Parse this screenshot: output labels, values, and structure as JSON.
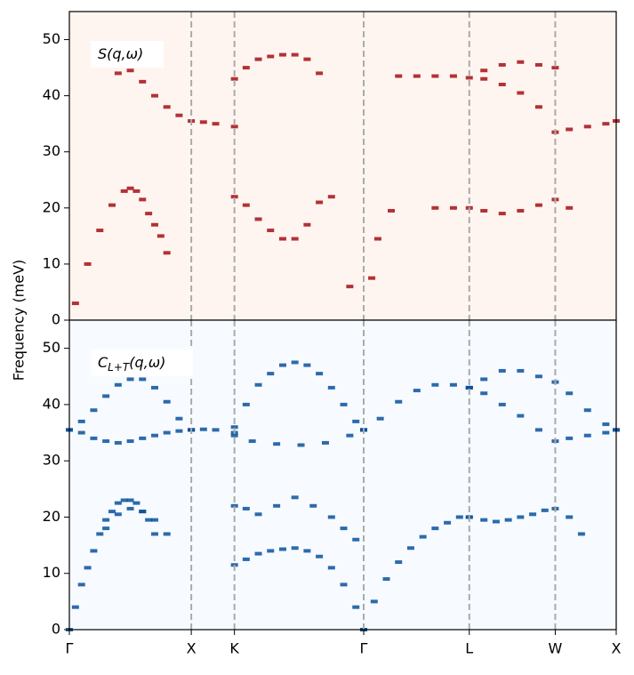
{
  "chart_data": [
    {
      "type": "heatmap-branches",
      "ylabel": "Frequency (meV)",
      "annotation": {
        "main": "S",
        "rest": "(q,ω)"
      },
      "background": "#fff5f0",
      "xlim": [
        0,
        4.485
      ],
      "ylim": [
        0,
        55
      ],
      "yticks": [
        0,
        10,
        20,
        30,
        40,
        50
      ],
      "xticks": [
        0,
        1,
        1.354,
        2.414,
        3.28,
        3.985,
        4.485
      ],
      "series": [
        {
          "color": "#a50f15",
          "x": [
            0.4,
            0.5,
            0.6,
            0.7,
            0.8,
            0.9,
            1.0,
            1.1,
            1.2,
            1.354
          ],
          "values": [
            44,
            44.5,
            42.5,
            40,
            38,
            36.5,
            35.5,
            35.3,
            35,
            34.5
          ]
        },
        {
          "color": "#a50f15",
          "x": [
            1.354,
            1.45,
            1.55,
            1.65,
            1.75,
            1.85,
            1.95,
            2.05
          ],
          "values": [
            43,
            45,
            46.5,
            47,
            47.3,
            47.3,
            46.5,
            44
          ]
        },
        {
          "color": "#a50f15",
          "x": [
            2.7,
            2.85,
            3.0,
            3.15,
            3.28,
            3.4,
            3.55,
            3.7,
            3.85,
            3.985,
            4.1,
            4.25,
            4.4,
            4.485
          ],
          "values": [
            43.5,
            43.5,
            43.5,
            43.5,
            43.2,
            43,
            42,
            40.5,
            38,
            33.5,
            34,
            34.5,
            35,
            35.5
          ]
        },
        {
          "color": "#a50f15",
          "x": [
            3.4,
            3.55,
            3.7,
            3.85,
            3.985
          ],
          "values": [
            44.5,
            45.5,
            46,
            45.5,
            45
          ]
        },
        {
          "color": "#a50f15",
          "x": [
            0.05,
            0.15,
            0.25,
            0.35,
            0.45,
            0.5,
            0.55,
            0.6,
            0.65,
            0.7,
            0.75,
            0.8
          ],
          "values": [
            3,
            10,
            16,
            20.5,
            23,
            23.5,
            23,
            21.5,
            19,
            17,
            15,
            12
          ]
        },
        {
          "color": "#a50f15",
          "x": [
            1.354,
            1.45,
            1.55,
            1.65,
            1.75,
            1.85,
            1.95,
            2.05,
            2.15
          ],
          "values": [
            22,
            20.5,
            18,
            16,
            14.5,
            14.5,
            17,
            21,
            22
          ]
        },
        {
          "color": "#a50f15",
          "x": [
            2.3,
            2.48,
            2.53,
            2.64,
            3.0,
            3.15,
            3.28,
            3.4,
            3.55,
            3.7,
            3.85,
            3.985,
            4.1
          ],
          "values": [
            6,
            7.5,
            14.5,
            19.5,
            20,
            20,
            20,
            19.5,
            19,
            19.5,
            20.5,
            21.5,
            20
          ]
        }
      ]
    },
    {
      "type": "heatmap-branches",
      "annotation": {
        "main": "C",
        "sub": "L+T",
        "rest": "(q,ω)"
      },
      "background": "#f7fbff",
      "xlim": [
        0,
        4.485
      ],
      "ylim": [
        0,
        55
      ],
      "yticks": [
        0,
        10,
        20,
        30,
        40,
        50
      ],
      "xticks": [
        {
          "value": 0,
          "label": "Γ"
        },
        {
          "value": 1,
          "label": "X"
        },
        {
          "value": 1.354,
          "label": "K"
        },
        {
          "value": 2.414,
          "label": "Γ"
        },
        {
          "value": 3.28,
          "label": "L"
        },
        {
          "value": 3.985,
          "label": "W"
        },
        {
          "value": 4.485,
          "label": "X"
        }
      ],
      "series": [
        {
          "color": "#08519c",
          "x": [
            0,
            0.1,
            0.2,
            0.3,
            0.4,
            0.5,
            0.6,
            0.7,
            0.8,
            0.9,
            1.0
          ],
          "values": [
            35.5,
            37,
            39,
            41.5,
            43.5,
            44.5,
            44.5,
            43,
            40.5,
            37.5,
            35.5
          ]
        },
        {
          "color": "#08519c",
          "x": [
            0,
            0.1,
            0.2,
            0.3,
            0.4,
            0.5,
            0.6,
            0.7,
            0.8,
            0.9,
            1.0
          ],
          "values": [
            35.5,
            35,
            34,
            33.5,
            33.2,
            33.5,
            34,
            34.5,
            35,
            35.3,
            35.5
          ]
        },
        {
          "color": "#08519c",
          "x": [
            1.0,
            1.1,
            1.2,
            1.354
          ],
          "values": [
            35.5,
            35.6,
            35.5,
            35
          ]
        },
        {
          "color": "#08519c",
          "x": [
            1.354,
            1.45,
            1.55,
            1.65,
            1.75,
            1.85,
            1.95,
            2.05,
            2.15,
            2.25,
            2.35,
            2.414
          ],
          "values": [
            36,
            40,
            43.5,
            45.5,
            47,
            47.5,
            47,
            45.5,
            43,
            40,
            37,
            35.5
          ]
        },
        {
          "color": "#08519c",
          "x": [
            1.354,
            1.5,
            1.7,
            1.9,
            2.1,
            2.3,
            2.414
          ],
          "values": [
            34.5,
            33.5,
            33,
            32.8,
            33.2,
            34.5,
            35.5
          ]
        },
        {
          "color": "#08519c",
          "x": [
            2.414,
            2.55,
            2.7,
            2.85,
            3.0,
            3.15,
            3.28
          ],
          "values": [
            35.5,
            37.5,
            40.5,
            42.5,
            43.5,
            43.5,
            43
          ]
        },
        {
          "color": "#08519c",
          "x": [
            3.28,
            3.4,
            3.55,
            3.7,
            3.85,
            3.985,
            4.1,
            4.25,
            4.4,
            4.485
          ],
          "values": [
            43,
            44.5,
            46,
            46,
            45,
            44,
            42,
            39,
            36.5,
            35.5
          ]
        },
        {
          "color": "#08519c",
          "x": [
            3.28,
            3.4,
            3.55,
            3.7,
            3.85,
            3.985,
            4.1,
            4.25,
            4.4,
            4.485
          ],
          "values": [
            43,
            42,
            40,
            38,
            35.5,
            33.5,
            34,
            34.5,
            35,
            35.5
          ]
        },
        {
          "color": "#08519c",
          "x": [
            0,
            0.05,
            0.1,
            0.15,
            0.2,
            0.25,
            0.3,
            0.35,
            0.4,
            0.45,
            0.5,
            0.55,
            0.6,
            0.65,
            0.7
          ],
          "values": [
            0,
            4,
            8,
            11,
            14,
            17,
            19.5,
            21,
            22.5,
            23,
            23,
            22.5,
            21,
            19.5,
            17
          ]
        },
        {
          "color": "#08519c",
          "x": [
            0.3,
            0.4,
            0.5,
            0.6,
            0.7,
            0.8
          ],
          "values": [
            18,
            20.5,
            21.5,
            21,
            19.5,
            17
          ]
        },
        {
          "color": "#08519c",
          "x": [
            1.354,
            1.45,
            1.55,
            1.65,
            1.75,
            1.85,
            1.95,
            2.05,
            2.15,
            2.25,
            2.35,
            2.414
          ],
          "values": [
            11.5,
            12.5,
            13.5,
            14,
            14.3,
            14.5,
            14,
            13,
            11,
            8,
            4,
            0
          ]
        },
        {
          "color": "#08519c",
          "x": [
            1.354,
            1.45,
            1.55,
            1.7,
            1.85,
            2.0,
            2.15,
            2.25,
            2.35
          ],
          "values": [
            22,
            21.5,
            20.5,
            22,
            23.5,
            22,
            20,
            18,
            16
          ]
        },
        {
          "color": "#08519c",
          "x": [
            2.414,
            2.5,
            2.6,
            2.7,
            2.8,
            2.9,
            3.0,
            3.1,
            3.2,
            3.28
          ],
          "values": [
            0,
            5,
            9,
            12,
            14.5,
            16.5,
            18,
            19,
            20,
            20
          ]
        },
        {
          "color": "#08519c",
          "x": [
            3.28,
            3.4,
            3.5,
            3.6,
            3.7,
            3.8,
            3.9,
            3.985,
            4.1,
            4.2
          ],
          "values": [
            20,
            19.5,
            19.2,
            19.5,
            20,
            20.5,
            21.2,
            21.5,
            20,
            17
          ]
        }
      ]
    }
  ]
}
